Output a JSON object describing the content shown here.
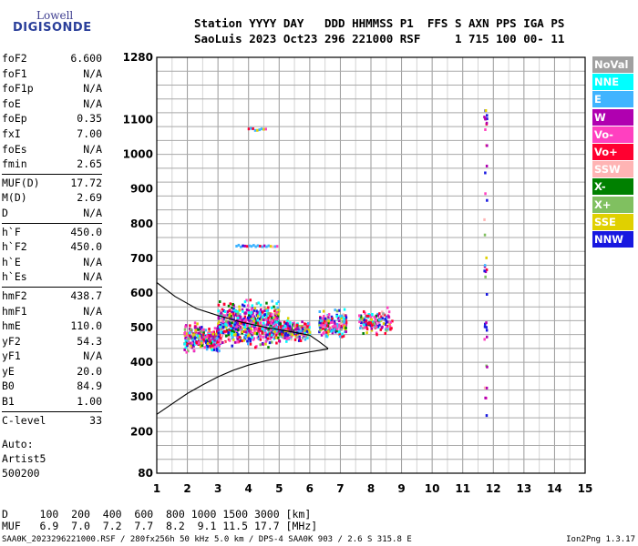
{
  "logo": {
    "line1": "Lowell",
    "line2": "DIGISONDE"
  },
  "header": {
    "line1": "Station YYYY DAY   DDD HHMMSS P1  FFS S AXN PPS IGA PS",
    "line2": "SaoLuis 2023 Oct23 296 221000 RSF     1 715 100 00- 11"
  },
  "params": {
    "group1": [
      {
        "k": "foF2",
        "v": "6.600"
      },
      {
        "k": "foF1",
        "v": "N/A"
      },
      {
        "k": "foF1p",
        "v": "N/A"
      },
      {
        "k": "foE",
        "v": "N/A"
      },
      {
        "k": "foEp",
        "v": "0.35"
      },
      {
        "k": "fxI",
        "v": "7.00"
      },
      {
        "k": "foEs",
        "v": "N/A"
      },
      {
        "k": "fmin",
        "v": "2.65"
      }
    ],
    "group2": [
      {
        "k": "MUF(D)",
        "v": "17.72"
      },
      {
        "k": "M(D)",
        "v": "2.69"
      },
      {
        "k": "D",
        "v": "N/A"
      }
    ],
    "group3": [
      {
        "k": "h`F",
        "v": "450.0"
      },
      {
        "k": "h`F2",
        "v": "450.0"
      },
      {
        "k": "h`E",
        "v": "N/A"
      },
      {
        "k": "h`Es",
        "v": "N/A"
      }
    ],
    "group4": [
      {
        "k": "hmF2",
        "v": "438.7"
      },
      {
        "k": "hmF1",
        "v": "N/A"
      },
      {
        "k": "hmE",
        "v": "110.0"
      },
      {
        "k": "yF2",
        "v": "54.3"
      },
      {
        "k": "yF1",
        "v": "N/A"
      },
      {
        "k": "yE",
        "v": "20.0"
      },
      {
        "k": "B0",
        "v": "84.9"
      },
      {
        "k": "B1",
        "v": "1.00"
      }
    ],
    "group5": [
      {
        "k": "C-level",
        "v": "33"
      }
    ],
    "auto": [
      "Auto:",
      "Artist5",
      "500200"
    ]
  },
  "bottom": {
    "d_line": "D     100  200  400  600  800 1000 1500 3000 [km]",
    "muf_line": "MUF   6.9  7.0  7.2  7.7  8.2  9.1 11.5 17.7 [MHz]"
  },
  "footer": {
    "left": "SAA0K_2023296221000.RSF / 280fx256h 50 kHz 5.0 km / DPS-4 SAA0K 903 / 2.6 S 315.8 E",
    "right": "Ion2Png 1.3.17"
  },
  "legend": [
    {
      "label": "NoVal",
      "color": "#a0a0a0"
    },
    {
      "label": "NNE",
      "color": "#00ffff"
    },
    {
      "label": "E",
      "color": "#40b4ff"
    },
    {
      "label": "W",
      "color": "#b000b0"
    },
    {
      "label": "Vo-",
      "color": "#ff40c0"
    },
    {
      "label": "Vo+",
      "color": "#ff0030"
    },
    {
      "label": "SSW",
      "color": "#ffb4b4"
    },
    {
      "label": "X-",
      "color": "#008000"
    },
    {
      "label": "X+",
      "color": "#80c060"
    },
    {
      "label": "SSE",
      "color": "#e0d000"
    },
    {
      "label": "NNW",
      "color": "#1818e0"
    }
  ],
  "chart_data": {
    "type": "scatter",
    "xlim": [
      1,
      15
    ],
    "ylim": [
      80,
      1280
    ],
    "x_ticks": [
      1,
      2,
      3,
      4,
      5,
      6,
      7,
      8,
      9,
      10,
      11,
      12,
      13,
      14,
      15
    ],
    "y_ticks": [
      80,
      200,
      300,
      400,
      500,
      600,
      700,
      800,
      900,
      1000,
      1100,
      1280
    ],
    "grid": true,
    "echo_clusters": [
      {
        "x_range": [
          1.9,
          3.1
        ],
        "y_range": [
          420,
          520
        ],
        "count": 320
      },
      {
        "x_range": [
          3.0,
          5.0
        ],
        "y_range": [
          430,
          590
        ],
        "count": 650
      },
      {
        "x_range": [
          5.0,
          6.0
        ],
        "y_range": [
          450,
          530
        ],
        "count": 230
      },
      {
        "x_range": [
          6.3,
          7.2
        ],
        "y_range": [
          460,
          560
        ],
        "count": 170
      },
      {
        "x_range": [
          7.6,
          8.7
        ],
        "y_range": [
          470,
          560
        ],
        "count": 130
      }
    ],
    "echo_traces": [
      {
        "x_range": [
          3.6,
          5.0
        ],
        "y": 735
      },
      {
        "x_range": [
          4.0,
          4.6
        ],
        "y": 1072
      },
      {
        "x_range": [
          11.7,
          11.8
        ],
        "y_range": [
          230,
          1140
        ]
      }
    ],
    "profile_curve": [
      {
        "x": 1.0,
        "y": 250
      },
      {
        "x": 1.5,
        "y": 280
      },
      {
        "x": 2.0,
        "y": 310
      },
      {
        "x": 2.5,
        "y": 335
      },
      {
        "x": 3.0,
        "y": 358
      },
      {
        "x": 3.5,
        "y": 377
      },
      {
        "x": 4.0,
        "y": 392
      },
      {
        "x": 4.5,
        "y": 403
      },
      {
        "x": 5.0,
        "y": 413
      },
      {
        "x": 5.5,
        "y": 422
      },
      {
        "x": 6.0,
        "y": 430
      },
      {
        "x": 6.6,
        "y": 438.7
      }
    ],
    "trace_curve": [
      {
        "x": 1.0,
        "y": 630
      },
      {
        "x": 1.6,
        "y": 590
      },
      {
        "x": 2.3,
        "y": 555
      },
      {
        "x": 3.0,
        "y": 535
      },
      {
        "x": 3.8,
        "y": 515
      },
      {
        "x": 4.6,
        "y": 500
      },
      {
        "x": 5.4,
        "y": 488
      },
      {
        "x": 6.0,
        "y": 478
      },
      {
        "x": 6.3,
        "y": 460
      },
      {
        "x": 6.6,
        "y": 440
      }
    ]
  }
}
